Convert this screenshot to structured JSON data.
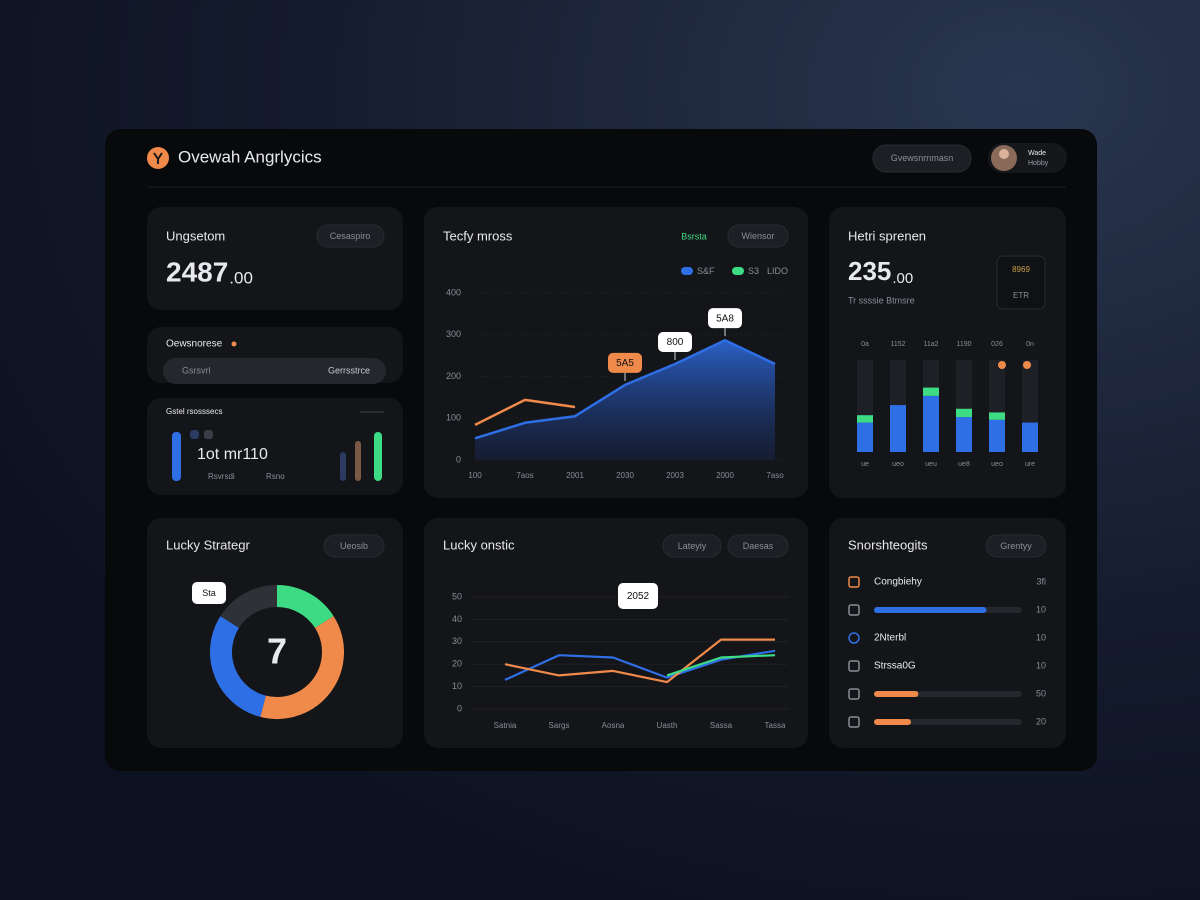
{
  "header": {
    "title": "Ovewah Angrlycics",
    "button": "Gvewsnrnmasn",
    "user": {
      "name": "Wade",
      "role": "Hobby"
    }
  },
  "balance": {
    "title": "Ungsetom",
    "button": "Cesaspiro",
    "value": "2487",
    "decimals": ".00"
  },
  "overview": {
    "title": "Oewsnorese",
    "left": "Gsrsvrl",
    "right": "Gerrsstrce"
  },
  "stats": {
    "title": "Gstel rsosssecs",
    "value": "1ot mr110",
    "note1": "Rsvrsdi",
    "note2": "Rsno"
  },
  "trend": {
    "type": "area",
    "title": "Tecfy mross",
    "status": "Bsrsta",
    "button": "Wiensor",
    "legend": [
      {
        "name": "S&F",
        "color": "#2f6fe6"
      },
      {
        "name": "S3",
        "color": "#3ddc84"
      }
    ],
    "legend_note": "LIDO",
    "categories": [
      "100",
      "7aos",
      "2001",
      "2030",
      "2003",
      "2000",
      "7aso"
    ],
    "series": [
      {
        "color": "#2f6fe6",
        "values": [
          52,
          89,
          105,
          180,
          230,
          287,
          230
        ]
      },
      {
        "color": "#f08a4b",
        "values": [
          84,
          144,
          127,
          null,
          null,
          null,
          null
        ]
      }
    ],
    "ylim": [
      0,
      400
    ],
    "yticks": [
      0,
      100,
      200,
      300,
      400
    ],
    "grid": true,
    "annotations": [
      {
        "text": "5A5",
        "category": "2030",
        "color": "#f08a4b"
      },
      {
        "text": "800",
        "category": "2003",
        "color": "#ffffff"
      },
      {
        "text": "5A8",
        "category": "2000",
        "color": "#ffffff"
      }
    ]
  },
  "heat": {
    "type": "stacked_bar",
    "title": "Hetri sprenen",
    "value": "235",
    "decimals": ".00",
    "subtitle": "Tr ssssie Btmsre",
    "badge": [
      "8969",
      "ETR"
    ],
    "categories": [
      "0a",
      "1152",
      "11a2",
      "1190",
      "026",
      "0n"
    ],
    "bottom_labels": [
      "ue",
      "ueo",
      "ueu",
      "ue8",
      "ueo",
      "ure"
    ],
    "series": [
      {
        "color": "#2f6fe6",
        "values": [
          32,
          51,
          61,
          38,
          35,
          32
        ]
      },
      {
        "color": "#3ddc84",
        "values": [
          8,
          0,
          9,
          9,
          8,
          0
        ]
      }
    ],
    "ylim": [
      0,
      100
    ]
  },
  "strategy": {
    "type": "donut",
    "title": "Lucky Strategr",
    "button": "Ueosib",
    "center": "7",
    "tag": "Sta",
    "values": [
      16,
      38,
      30,
      16
    ],
    "colors": [
      "#3ddc84",
      "#f08a4b",
      "#2f6fe6",
      "#2e3136"
    ]
  },
  "lucky": {
    "type": "line",
    "title": "Lucky onstic",
    "buttons": [
      "Lateyiy",
      "Daesas"
    ],
    "tag": "2052",
    "categories": [
      "Satnia",
      "Sargs",
      "Aosna",
      "Uasth",
      "Sassa",
      "Tassa"
    ],
    "series": [
      {
        "color": "#2f6fe6",
        "values": [
          13,
          24,
          23,
          14,
          22,
          26
        ]
      },
      {
        "color": "#f08a4b",
        "values": [
          20,
          15,
          17,
          12,
          31,
          31
        ]
      },
      {
        "color": "#3ddc84",
        "values": [
          null,
          null,
          null,
          15,
          23,
          24
        ]
      }
    ],
    "ylim": [
      0,
      50
    ],
    "yticks": [
      0,
      10,
      20,
      30,
      40,
      50
    ],
    "grid": true
  },
  "list": {
    "title": "Snorshteogits",
    "button": "Grentyy",
    "xlim": [
      0,
      100
    ],
    "rows": [
      {
        "label": "Congbiehy",
        "value": "3fi"
      },
      {
        "bar": 76,
        "color": "#2f6fe6",
        "value": "10"
      },
      {
        "label": "2Nterbl",
        "value": "10"
      },
      {
        "label": "Strssa0G",
        "value": "10"
      },
      {
        "bar": 30,
        "color": "#f08a4b",
        "value": "50"
      },
      {
        "bar": 25,
        "color": "#f08a4b",
        "value": "20"
      }
    ]
  }
}
